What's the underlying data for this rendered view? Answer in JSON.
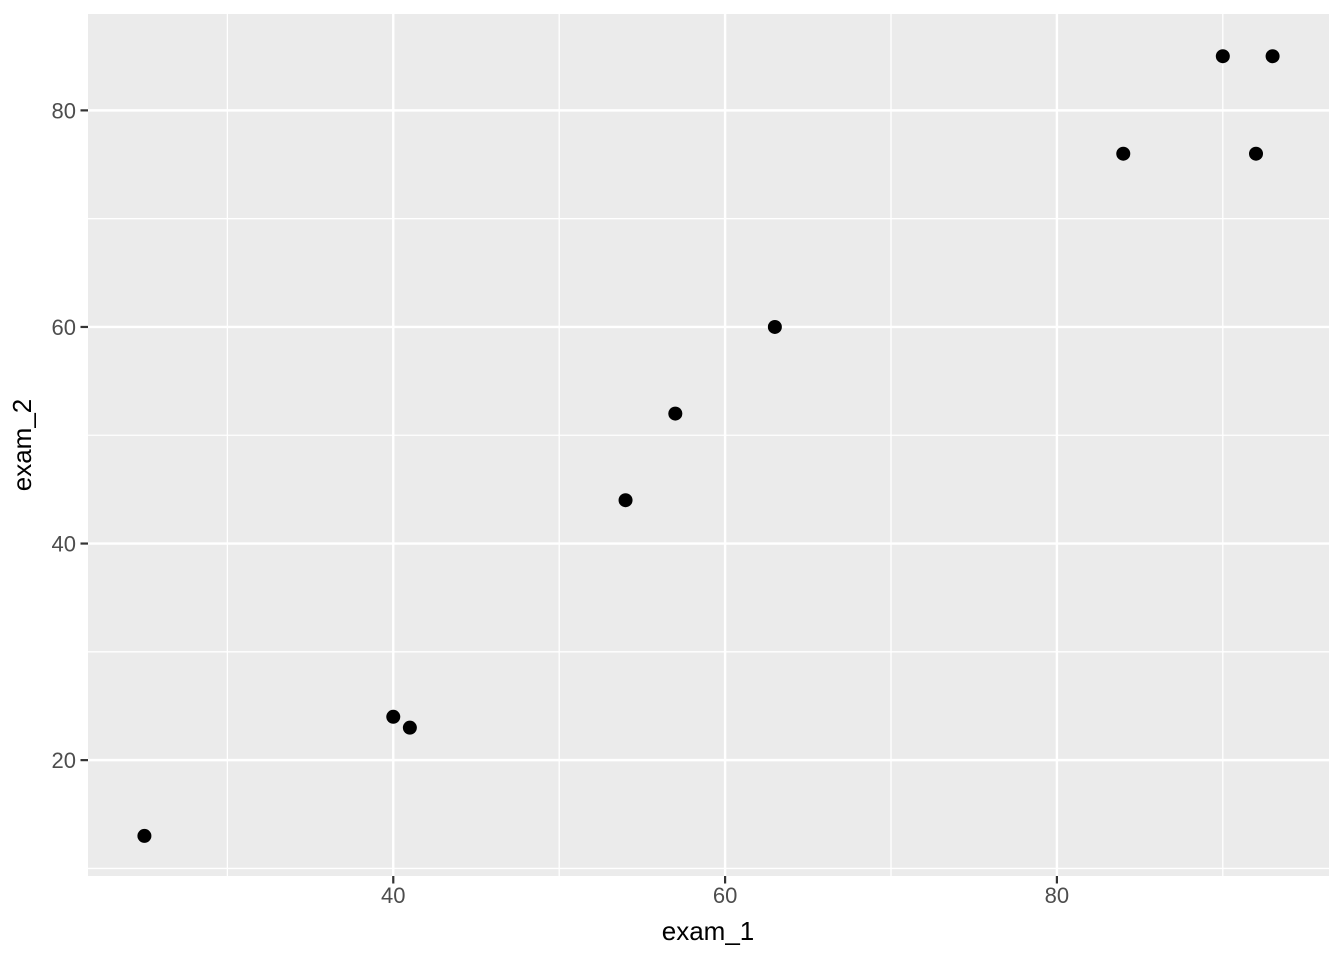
{
  "chart_data": {
    "type": "scatter",
    "title": "",
    "xlabel": "exam_1",
    "ylabel": "exam_2",
    "points": [
      {
        "x": 25,
        "y": 13
      },
      {
        "x": 40,
        "y": 24
      },
      {
        "x": 41,
        "y": 23
      },
      {
        "x": 54,
        "y": 44
      },
      {
        "x": 57,
        "y": 52
      },
      {
        "x": 63,
        "y": 60
      },
      {
        "x": 84,
        "y": 76
      },
      {
        "x": 90,
        "y": 85
      },
      {
        "x": 92,
        "y": 76
      },
      {
        "x": 93,
        "y": 85
      }
    ],
    "xlim": [
      21.6,
      96.4
    ],
    "ylim": [
      9.3,
      88.9
    ],
    "x_major_ticks": [
      40,
      60,
      80
    ],
    "y_major_ticks": [
      20,
      40,
      60,
      80
    ],
    "x_minor_ticks": [
      30,
      50,
      70,
      90
    ],
    "y_minor_ticks": [
      10,
      30,
      50,
      70
    ],
    "grid": "major+minor",
    "legend": "none",
    "style": {
      "panel_bg": "#EBEBEB",
      "plot_bg": "#FFFFFF",
      "grid_color": "#FFFFFF",
      "point_color": "#000000",
      "tick_mark_color": "#333333",
      "tick_label_color": "#4D4D4D",
      "axis_title_color": "#000000"
    }
  }
}
